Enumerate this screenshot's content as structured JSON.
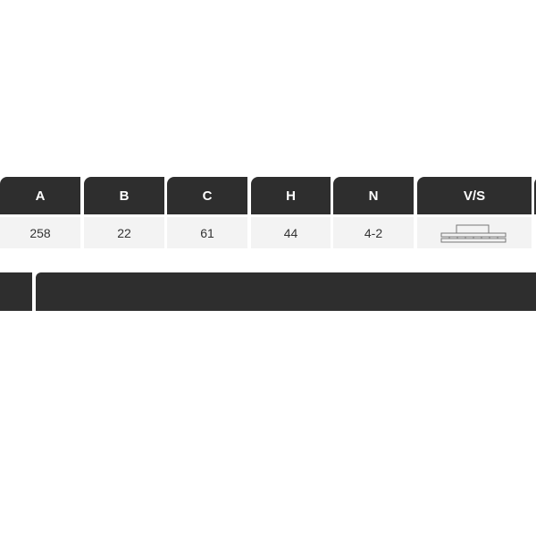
{
  "table": {
    "headers": [
      "A",
      "B",
      "C",
      "H",
      "N",
      "V/S"
    ],
    "row": [
      "258",
      "22",
      "61",
      "44",
      "4-2"
    ],
    "vs_icon": "vented-disc-icon"
  },
  "colors": {
    "header_bg": "#2e2e2e",
    "cell_bg": "#f3f3f3"
  }
}
